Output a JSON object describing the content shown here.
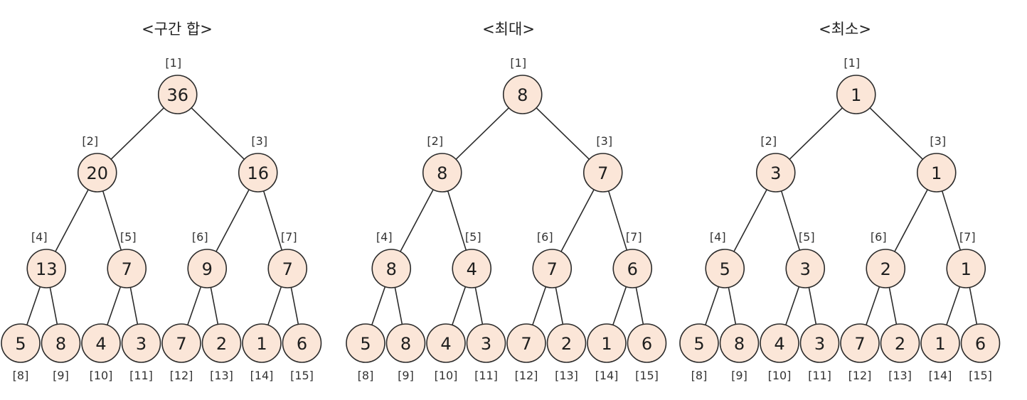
{
  "diagram": {
    "colors": {
      "node_fill": "#fbe6d8",
      "node_stroke": "#2b2b2b",
      "text": "#1e1e1e"
    },
    "trees": [
      {
        "title": "<구간 합>",
        "nodes": [
          {
            "index": "[1]",
            "value": "36"
          },
          {
            "index": "[2]",
            "value": "20"
          },
          {
            "index": "[3]",
            "value": "16"
          },
          {
            "index": "[4]",
            "value": "13"
          },
          {
            "index": "[5]",
            "value": "7"
          },
          {
            "index": "[6]",
            "value": "9"
          },
          {
            "index": "[7]",
            "value": "7"
          },
          {
            "index": "[8]",
            "value": "5"
          },
          {
            "index": "[9]",
            "value": "8"
          },
          {
            "index": "[10]",
            "value": "4"
          },
          {
            "index": "[11]",
            "value": "3"
          },
          {
            "index": "[12]",
            "value": "7"
          },
          {
            "index": "[13]",
            "value": "2"
          },
          {
            "index": "[14]",
            "value": "1"
          },
          {
            "index": "[15]",
            "value": "6"
          }
        ]
      },
      {
        "title": "<최대>",
        "nodes": [
          {
            "index": "[1]",
            "value": "8"
          },
          {
            "index": "[2]",
            "value": "8"
          },
          {
            "index": "[3]",
            "value": "7"
          },
          {
            "index": "[4]",
            "value": "8"
          },
          {
            "index": "[5]",
            "value": "4"
          },
          {
            "index": "[6]",
            "value": "7"
          },
          {
            "index": "[7]",
            "value": "6"
          },
          {
            "index": "[8]",
            "value": "5"
          },
          {
            "index": "[9]",
            "value": "8"
          },
          {
            "index": "[10]",
            "value": "4"
          },
          {
            "index": "[11]",
            "value": "3"
          },
          {
            "index": "[12]",
            "value": "7"
          },
          {
            "index": "[13]",
            "value": "2"
          },
          {
            "index": "[14]",
            "value": "1"
          },
          {
            "index": "[15]",
            "value": "6"
          }
        ]
      },
      {
        "title": "<최소>",
        "nodes": [
          {
            "index": "[1]",
            "value": "1"
          },
          {
            "index": "[2]",
            "value": "3"
          },
          {
            "index": "[3]",
            "value": "1"
          },
          {
            "index": "[4]",
            "value": "5"
          },
          {
            "index": "[5]",
            "value": "3"
          },
          {
            "index": "[6]",
            "value": "2"
          },
          {
            "index": "[7]",
            "value": "1"
          },
          {
            "index": "[8]",
            "value": "5"
          },
          {
            "index": "[9]",
            "value": "8"
          },
          {
            "index": "[10]",
            "value": "4"
          },
          {
            "index": "[11]",
            "value": "3"
          },
          {
            "index": "[12]",
            "value": "7"
          },
          {
            "index": "[13]",
            "value": "2"
          },
          {
            "index": "[14]",
            "value": "1"
          },
          {
            "index": "[15]",
            "value": "6"
          }
        ]
      }
    ]
  }
}
